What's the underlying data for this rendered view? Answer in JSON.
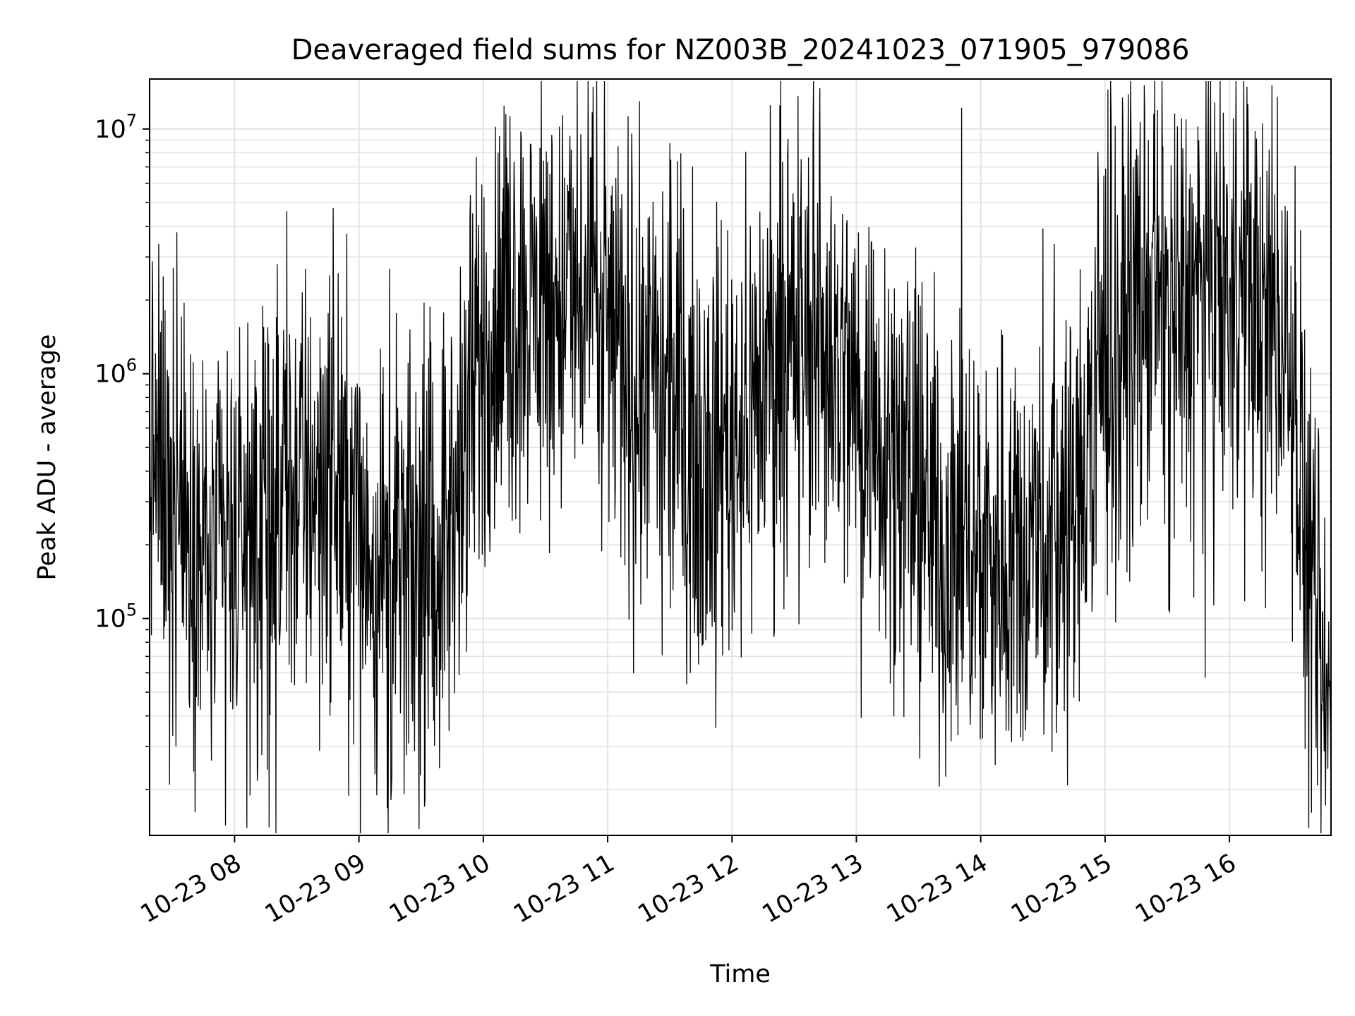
{
  "chart_data": {
    "type": "line",
    "title": "Deaveraged field sums for NZ003B_20241023_071905_979086",
    "xlabel": "Time",
    "ylabel": "Peak ADU - average",
    "y_scale": "log",
    "ylim": [
      13000,
      16000000
    ],
    "xlim": [
      "2024-10-23 07:19",
      "2024-10-23 16:49"
    ],
    "grid": true,
    "line_color": "#000000",
    "x_ticks": [
      "10-23 08",
      "10-23 09",
      "10-23 10",
      "10-23 11",
      "10-23 12",
      "10-23 13",
      "10-23 14",
      "10-23 15",
      "10-23 16"
    ],
    "y_ticks": [
      {
        "base": "10",
        "exp": "5",
        "value": 100000
      },
      {
        "base": "10",
        "exp": "6",
        "value": 1000000
      },
      {
        "base": "10",
        "exp": "7",
        "value": 10000000
      }
    ],
    "series": [
      {
        "x": [
          "2024-10-23 07:19",
          "2024-10-23 07:30",
          "2024-10-23 07:45",
          "2024-10-23 08:00",
          "2024-10-23 08:15",
          "2024-10-23 08:30",
          "2024-10-23 08:45",
          "2024-10-23 09:00",
          "2024-10-23 09:15",
          "2024-10-23 09:30",
          "2024-10-23 09:45",
          "2024-10-23 10:00",
          "2024-10-23 10:15",
          "2024-10-23 10:30",
          "2024-10-23 10:45",
          "2024-10-23 11:00",
          "2024-10-23 11:15",
          "2024-10-23 11:30",
          "2024-10-23 11:45",
          "2024-10-23 12:00",
          "2024-10-23 12:15",
          "2024-10-23 12:30",
          "2024-10-23 12:45",
          "2024-10-23 13:00",
          "2024-10-23 13:15",
          "2024-10-23 13:30",
          "2024-10-23 13:45",
          "2024-10-23 14:00",
          "2024-10-23 14:15",
          "2024-10-23 14:30",
          "2024-10-23 14:45",
          "2024-10-23 15:00",
          "2024-10-23 15:15",
          "2024-10-23 15:30",
          "2024-10-23 15:45",
          "2024-10-23 16:00",
          "2024-10-23 16:15",
          "2024-10-23 16:30",
          "2024-10-23 16:38",
          "2024-10-23 16:42",
          "2024-10-23 16:49"
        ],
        "y": [
          500000,
          300000,
          170000,
          200000,
          220000,
          350000,
          450000,
          250000,
          140000,
          160000,
          250000,
          1200000,
          2000000,
          2000000,
          2000000,
          1500000,
          1000000,
          700000,
          500000,
          600000,
          900000,
          1500000,
          1200000,
          800000,
          600000,
          300000,
          200000,
          200000,
          200000,
          180000,
          250000,
          1200000,
          2000000,
          2000000,
          2000000,
          2000000,
          1800000,
          1500000,
          150000,
          60000,
          35000
        ]
      }
    ]
  }
}
